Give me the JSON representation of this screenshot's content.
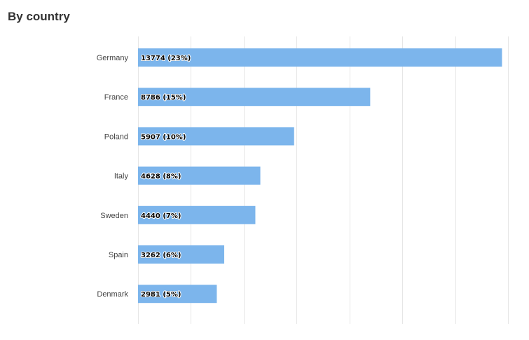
{
  "header": {
    "title": "By country"
  },
  "colors": {
    "bar": "#7cb5ec",
    "grid": "#e6e6e6"
  },
  "chart_data": {
    "type": "bar",
    "orientation": "horizontal",
    "grid": true,
    "xlim": [
      0,
      14000
    ],
    "categories": [
      "Germany",
      "France",
      "Poland",
      "Italy",
      "Sweden",
      "Spain",
      "Denmark"
    ],
    "values": [
      13774,
      8786,
      5907,
      4628,
      4440,
      3262,
      2981
    ],
    "data_labels": [
      "13774 (23%)",
      "8786 (15%)",
      "5907 (10%)",
      "4628 (8%)",
      "4440 (7%)",
      "3262 (6%)",
      "2981 (5%)"
    ]
  }
}
